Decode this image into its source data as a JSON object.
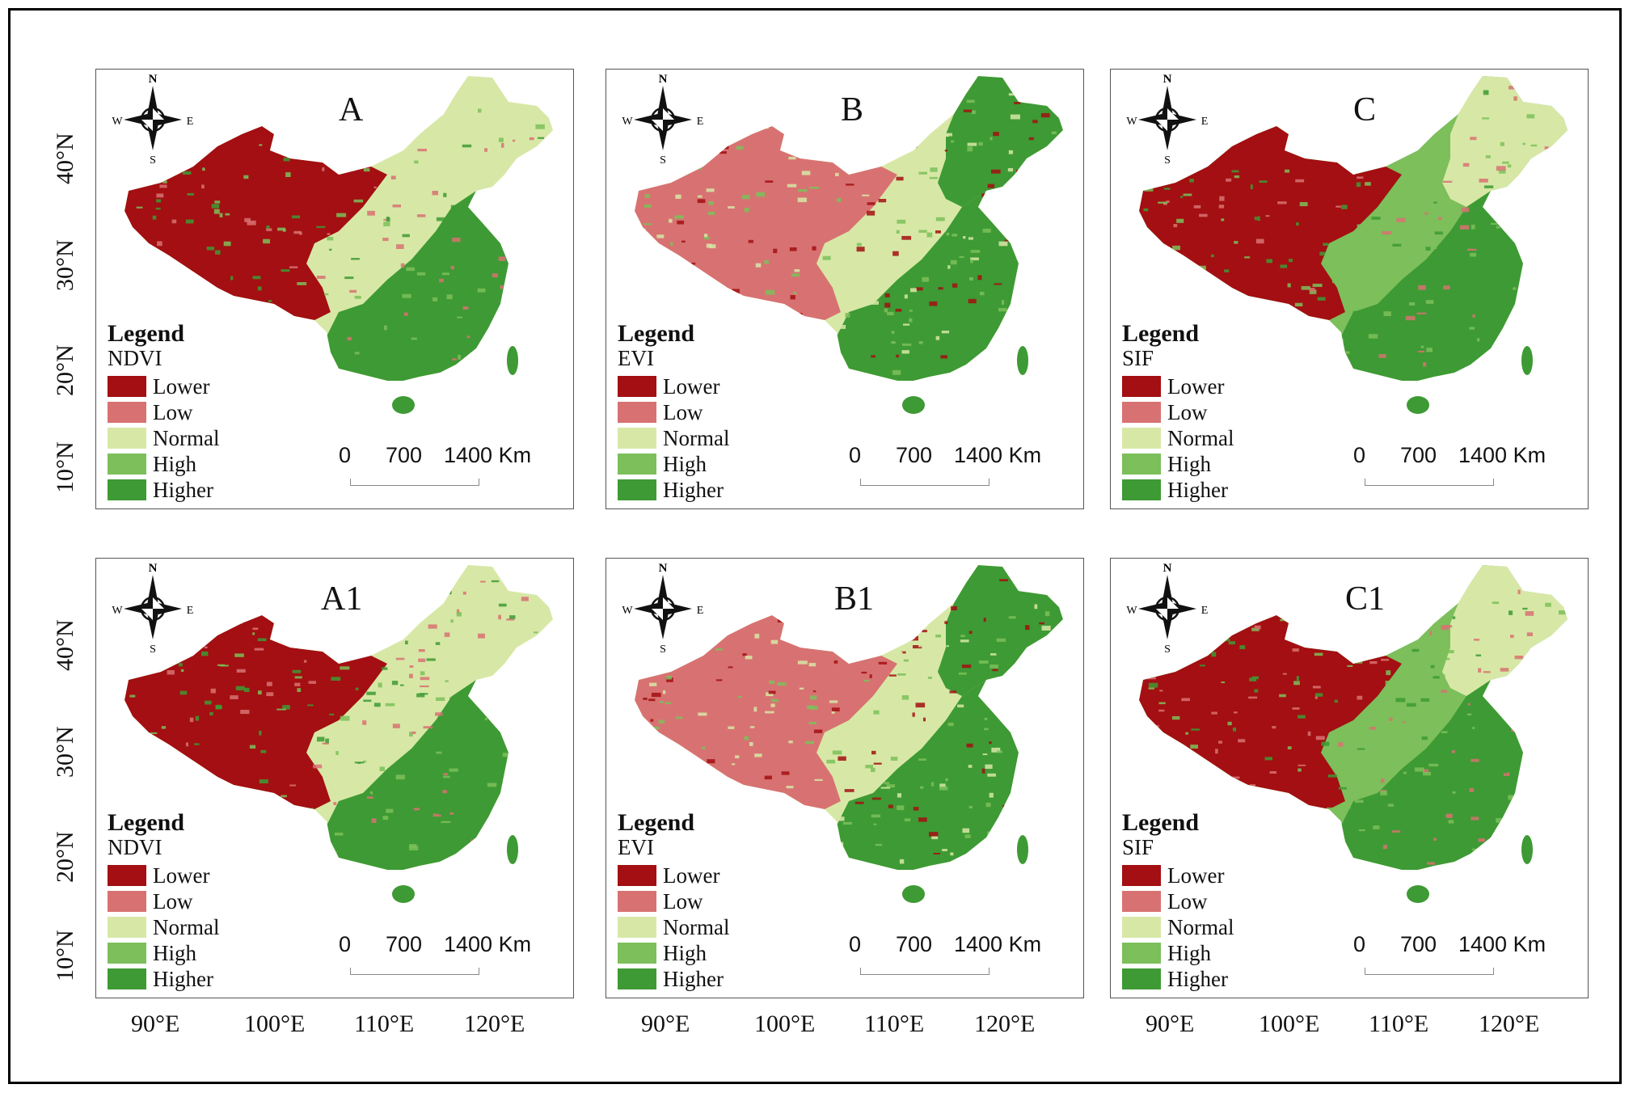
{
  "panels": [
    {
      "id": "A",
      "label": "A",
      "index": "NDVI",
      "ramp": [
        "#a30f12",
        "#d87272",
        "#d7e8a6",
        "#7cbf5b",
        "#3e9a34"
      ],
      "scheme": "a"
    },
    {
      "id": "B",
      "label": "B",
      "index": "EVI",
      "ramp": [
        "#a30f12",
        "#d87272",
        "#d7e8a6",
        "#7cbf5b",
        "#3e9a34"
      ],
      "scheme": "b"
    },
    {
      "id": "C",
      "label": "C",
      "index": "SIF",
      "ramp": [
        "#a30f12",
        "#d87272",
        "#d7e8a6",
        "#7cbf5b",
        "#3e9a34"
      ],
      "scheme": "c"
    },
    {
      "id": "A1",
      "label": "A1",
      "index": "NDVI",
      "ramp": [
        "#a30f12",
        "#d87272",
        "#d7e8a6",
        "#7cbf5b",
        "#3e9a34"
      ],
      "scheme": "a"
    },
    {
      "id": "B1",
      "label": "B1",
      "index": "EVI",
      "ramp": [
        "#a30f12",
        "#d87272",
        "#d7e8a6",
        "#7cbf5b",
        "#3e9a34"
      ],
      "scheme": "b"
    },
    {
      "id": "C1",
      "label": "C1",
      "index": "SIF",
      "ramp": [
        "#a30f12",
        "#d87272",
        "#d7e8a6",
        "#7cbf5b",
        "#3e9a34"
      ],
      "scheme": "c"
    }
  ],
  "legend": {
    "title": "Legend",
    "classes": [
      {
        "label": "Lower",
        "color": "#a30f12"
      },
      {
        "label": "Low",
        "color": "#d87272"
      },
      {
        "label": "Normal",
        "color": "#d7e8a6"
      },
      {
        "label": "High",
        "color": "#7cbf5b"
      },
      {
        "label": "Higher",
        "color": "#3e9a34"
      }
    ]
  },
  "scale_bar": {
    "ticks": [
      "0",
      "700",
      "1400 Km"
    ]
  },
  "compass": {
    "n": "N",
    "s": "S",
    "e": "E",
    "w": "W"
  },
  "axes": {
    "lat_ticks": [
      "40°N",
      "30°N",
      "20°N",
      "10°N"
    ],
    "lon_ticks": [
      "90°E",
      "100°E",
      "110°E",
      "120°E"
    ]
  }
}
